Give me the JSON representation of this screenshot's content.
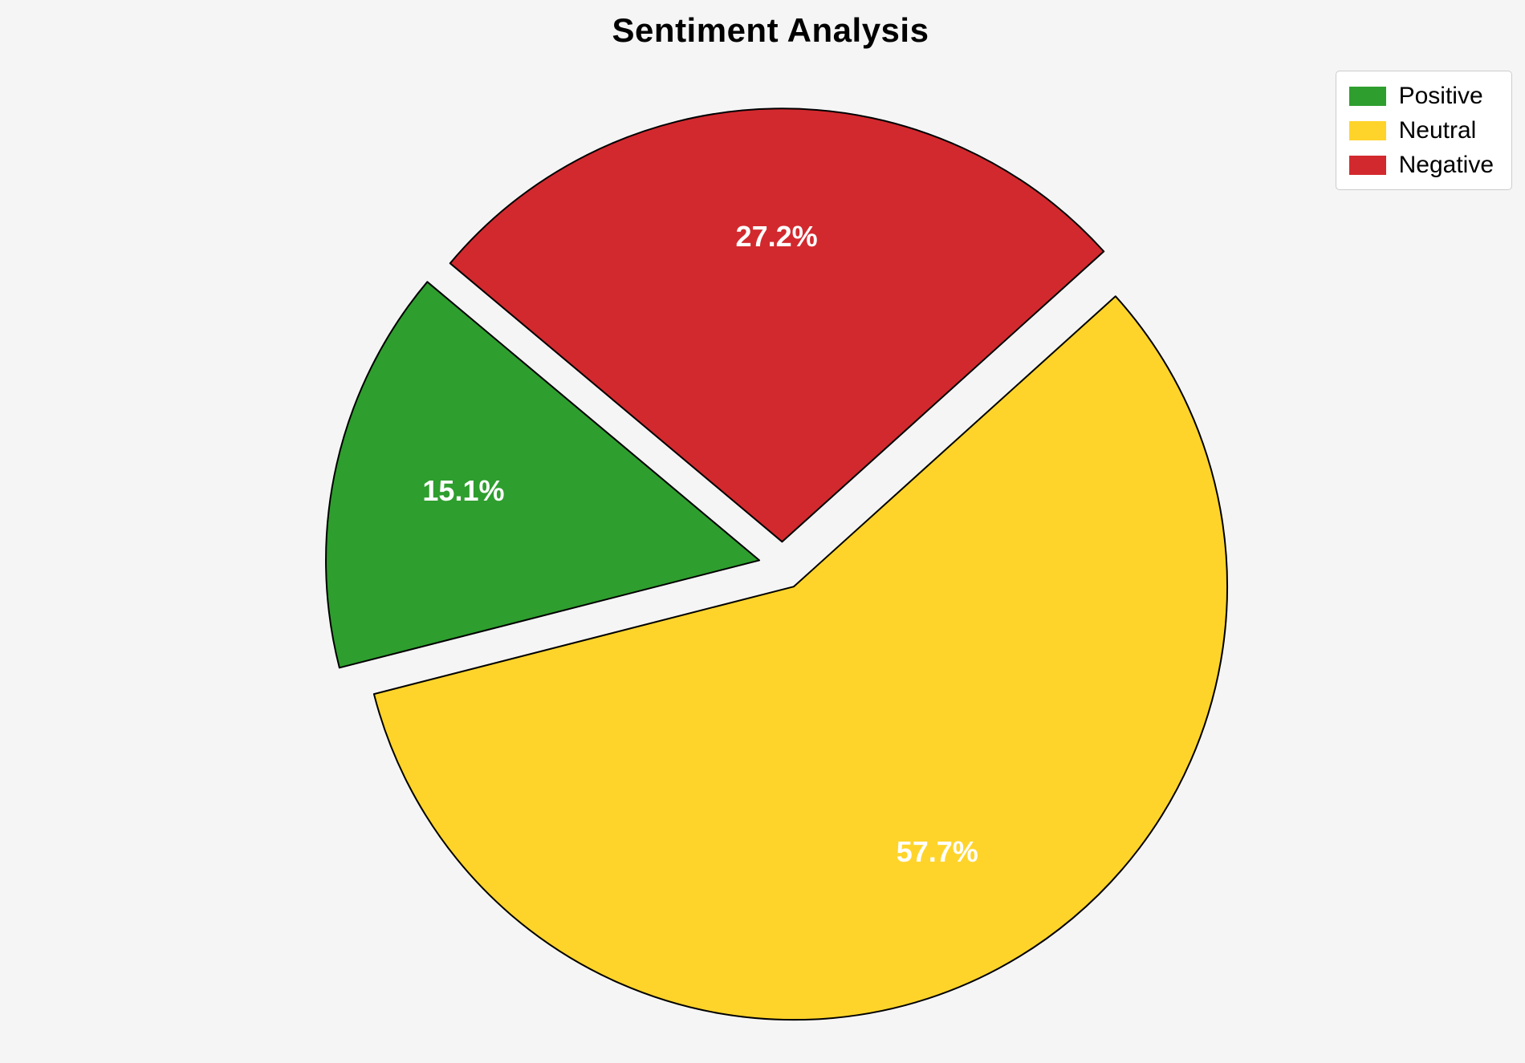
{
  "title": "Sentiment Analysis",
  "background_color": "#f5f5f5",
  "chart_data": {
    "type": "pie",
    "title": "Sentiment Analysis",
    "labels": [
      "Positive",
      "Neutral",
      "Negative"
    ],
    "values": [
      15.1,
      57.7,
      27.2
    ],
    "percent_labels": [
      "15.1%",
      "57.7%",
      "27.2%"
    ],
    "colors": [
      "#2e9e2e",
      "#ffd42a",
      "#d2292e"
    ],
    "slice_edge_color": "#000000",
    "start_angle": 140,
    "counterclockwise": true,
    "explode": 0.055,
    "pct_distance": 0.7,
    "legend": {
      "position": "upper right",
      "entries": [
        "Positive",
        "Neutral",
        "Negative"
      ]
    }
  }
}
